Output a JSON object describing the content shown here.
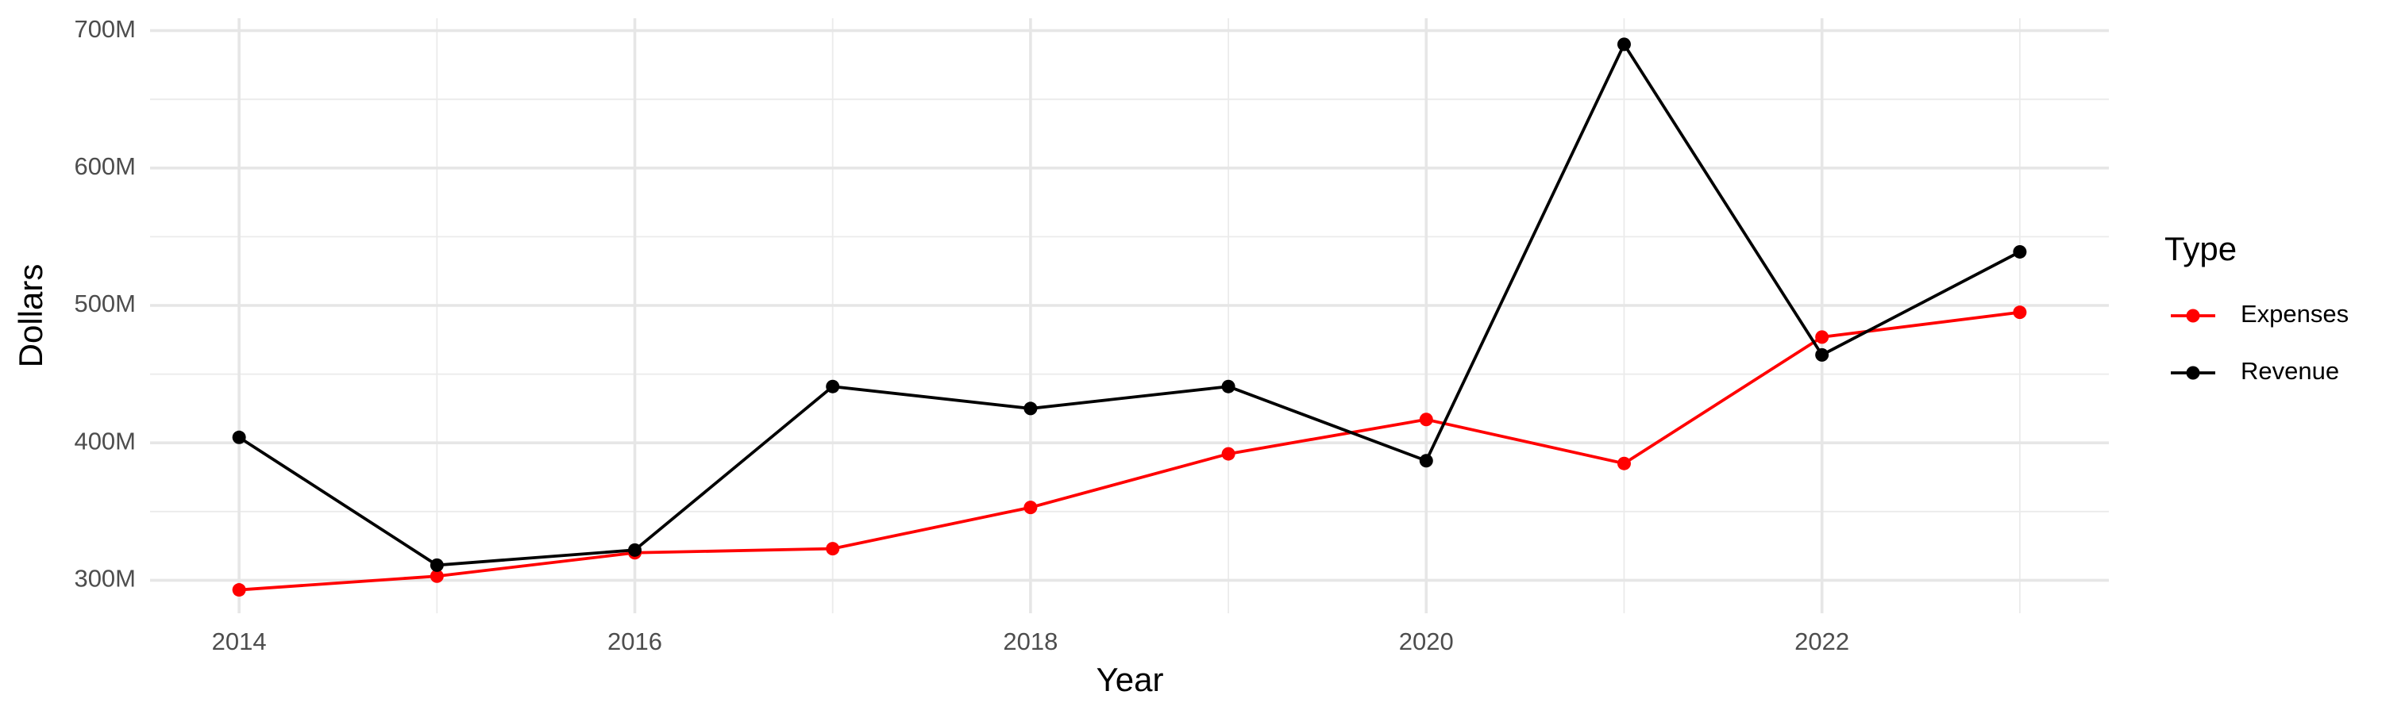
{
  "chart_data": {
    "type": "line",
    "x_label": "Year",
    "y_label": "Dollars",
    "legend_title": "Type",
    "legend_position": "right",
    "grid": true,
    "x": [
      2014,
      2015,
      2016,
      2017,
      2018,
      2019,
      2020,
      2021,
      2022,
      2023
    ],
    "series": [
      {
        "name": "Expenses",
        "color": "#ff0000",
        "values": [
          293000000,
          303000000,
          320000000,
          323000000,
          353000000,
          392000000,
          417000000,
          385000000,
          477000000,
          495000000
        ]
      },
      {
        "name": "Revenue",
        "color": "#000000",
        "values": [
          404000000,
          311000000,
          322000000,
          441000000,
          425000000,
          441000000,
          387000000,
          690000000,
          464000000,
          539000000
        ]
      }
    ],
    "xlim": [
      2013.55,
      2023.45
    ],
    "xticks": [
      2014,
      2016,
      2018,
      2020,
      2022
    ],
    "x_minor_ticks": [
      2015,
      2017,
      2019,
      2021,
      2023
    ],
    "ylim": [
      276000000,
      709000000
    ],
    "yticks": [
      {
        "value": 300000000,
        "label": "300M"
      },
      {
        "value": 400000000,
        "label": "400M"
      },
      {
        "value": 500000000,
        "label": "500M"
      },
      {
        "value": 600000000,
        "label": "600M"
      },
      {
        "value": 700000000,
        "label": "700M"
      }
    ],
    "y_minor_ticks": [
      350000000,
      450000000,
      550000000,
      650000000
    ]
  }
}
